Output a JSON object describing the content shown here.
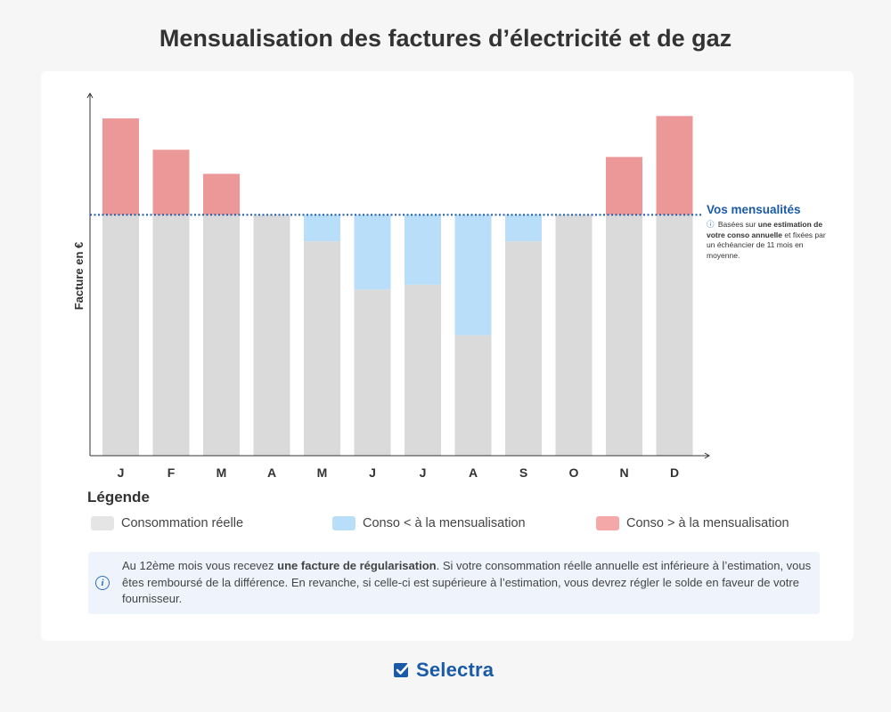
{
  "title": "Mensualisation des factures d’électricité et de gaz",
  "chart_data": {
    "type": "bar",
    "stacked": true,
    "ylabel": "Facture en €",
    "categories": [
      "J",
      "F",
      "M",
      "A",
      "M",
      "J",
      "J",
      "A",
      "S",
      "O",
      "N",
      "D"
    ],
    "baseline": 100,
    "consumption": [
      140,
      127,
      117,
      100,
      89,
      69,
      71,
      50,
      89,
      100,
      124,
      141
    ],
    "ylim": [
      0,
      150
    ],
    "reference_line": {
      "value": 100,
      "label": "Vos mensualités",
      "note_prefix": "Basées sur",
      "note_bold": "une estimation de votre conso annuelle",
      "note_suffix": "et fixées par un échéancier de 11 mois en moyenne."
    },
    "colors": {
      "real": "#dadada",
      "under": "#b8def9",
      "over": "#ec9898",
      "line": "#1a5aa6"
    }
  },
  "legend": {
    "title": "Légende",
    "items": [
      {
        "label": "Consommation réelle",
        "color": "#e5e5e5"
      },
      {
        "label": "Conso < à la mensualisation",
        "color": "#b8def9"
      },
      {
        "label": "Conso > à la mensualisation",
        "color": "#f4a8a8"
      }
    ]
  },
  "info": {
    "text_before": "Au 12ème mois vous recevez",
    "text_bold": "une facture de régularisation",
    "text_after": ". Si votre consommation réelle annuelle est inférieure à l’estimation, vous êtes remboursé de la différence. En revanche, si celle-ci est supérieure à l’estimation, vous devrez régler le solde en faveur de votre fournisseur."
  },
  "brand": {
    "name": "Selectra",
    "icon": "checkbox-check-icon"
  }
}
